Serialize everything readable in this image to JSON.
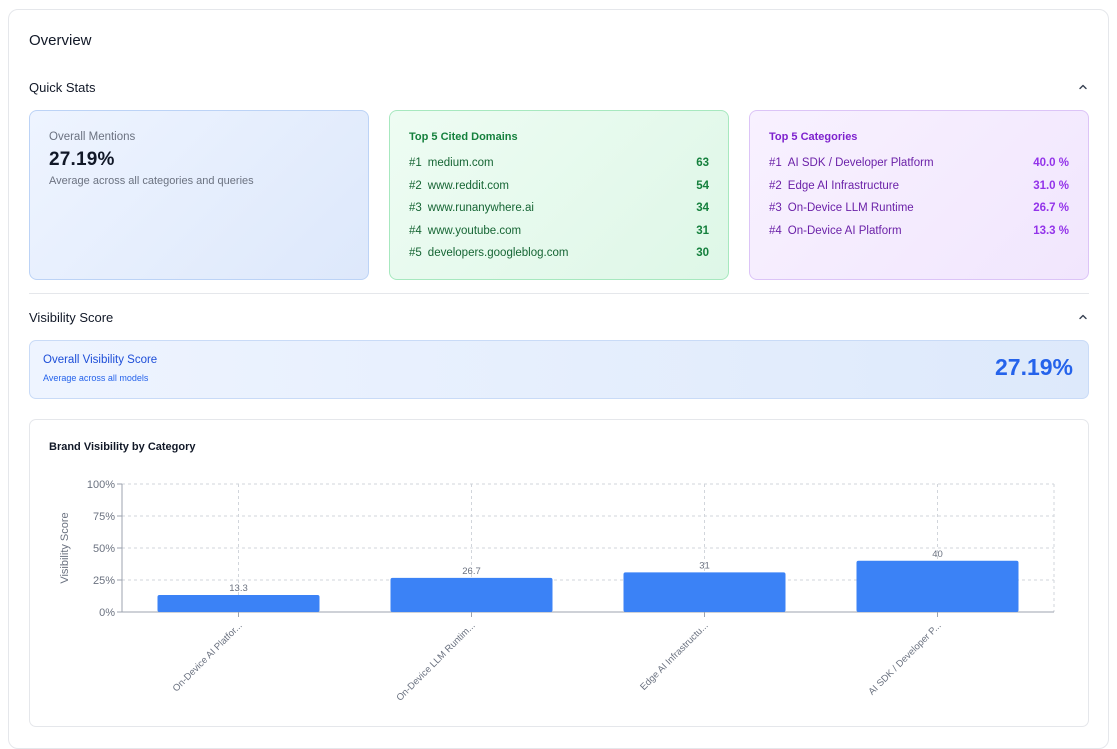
{
  "overview": {
    "title": "Overview"
  },
  "quick_stats": {
    "title": "Quick Stats",
    "mentions": {
      "label": "Overall Mentions",
      "value": "27.19%",
      "subtitle": "Average across all categories and queries"
    },
    "domains": {
      "title": "Top 5 Cited Domains",
      "items": [
        {
          "rank": "#1",
          "name": "medium.com",
          "value": "63"
        },
        {
          "rank": "#2",
          "name": "www.reddit.com",
          "value": "54"
        },
        {
          "rank": "#3",
          "name": "www.runanywhere.ai",
          "value": "34"
        },
        {
          "rank": "#4",
          "name": "www.youtube.com",
          "value": "31"
        },
        {
          "rank": "#5",
          "name": "developers.googleblog.com",
          "value": "30"
        }
      ]
    },
    "categories": {
      "title": "Top 5 Categories",
      "items": [
        {
          "rank": "#1",
          "name": "AI SDK / Developer Platform",
          "value": "40.0 %"
        },
        {
          "rank": "#2",
          "name": "Edge AI Infrastructure",
          "value": "31.0 %"
        },
        {
          "rank": "#3",
          "name": "On-Device LLM Runtime",
          "value": "26.7 %"
        },
        {
          "rank": "#4",
          "name": "On-Device AI Platform",
          "value": "13.3 %"
        }
      ]
    }
  },
  "visibility": {
    "title": "Visibility Score",
    "card": {
      "title": "Overall Visibility Score",
      "subtitle": "Average across all models",
      "value": "27.19%"
    }
  },
  "chart_data": {
    "type": "bar",
    "title": "Brand Visibility by Category",
    "ylabel": "Visibility Score",
    "xlabel": "",
    "ylim": [
      0,
      100
    ],
    "yticks": [
      "0%",
      "25%",
      "50%",
      "75%",
      "100%"
    ],
    "categories": [
      "On-Device AI Platfor...",
      "On-Device LLM Runtim...",
      "Edge AI Infrastructu...",
      "AI SDK / Developer P..."
    ],
    "values": [
      13.3,
      26.7,
      31,
      40
    ],
    "data_labels": [
      "13.3",
      "26.7",
      "31",
      "40"
    ],
    "grid": true,
    "color": "#3b82f6"
  },
  "colors": {
    "accent_blue": "#2563eb",
    "green": "#15803d",
    "purple": "#9333ea",
    "bar": "#3b82f6"
  }
}
